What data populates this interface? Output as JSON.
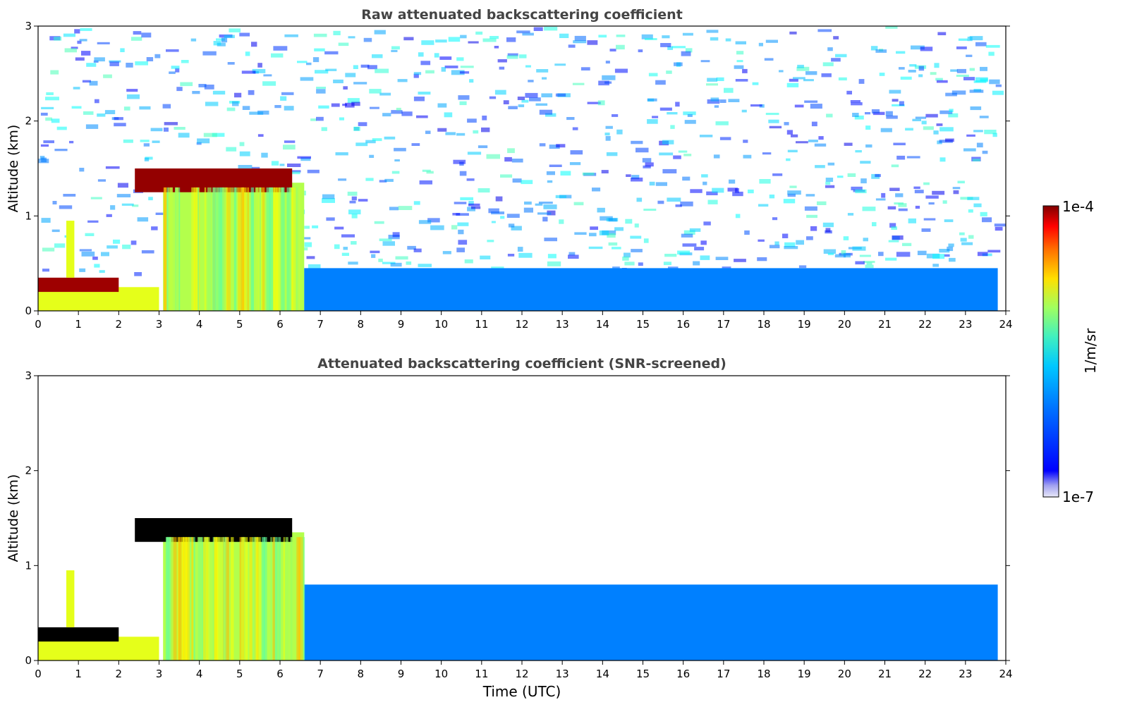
{
  "chart_data": [
    {
      "type": "heatmap",
      "title": "Raw attenuated backscattering coefficient",
      "xlabel": "",
      "ylabel": "Altitude (km)",
      "xlim": [
        0,
        24
      ],
      "ylim": [
        0,
        3
      ],
      "x_ticks": [
        "0",
        "1",
        "2",
        "3",
        "4",
        "5",
        "6",
        "7",
        "8",
        "9",
        "10",
        "11",
        "12",
        "13",
        "14",
        "15",
        "16",
        "17",
        "18",
        "19",
        "20",
        "21",
        "22",
        "23",
        "24"
      ],
      "y_ticks": [
        "0",
        "1",
        "2",
        "3"
      ],
      "data_end_time": 23.8,
      "log_scale_color": true,
      "features": [
        {
          "t0": 0.0,
          "t1": 3.0,
          "z0": 0.0,
          "z1": 0.25,
          "level": 0.6
        },
        {
          "t0": 0.0,
          "t1": 2.0,
          "z0": 0.2,
          "z1": 0.35,
          "level": 0.97
        },
        {
          "t0": 0.7,
          "t1": 0.9,
          "z0": 0.35,
          "z1": 0.95,
          "level": 0.6
        },
        {
          "t0": 3.1,
          "t1": 6.6,
          "z0": 0.0,
          "z1": 1.35,
          "level": 0.55
        },
        {
          "t0": 2.4,
          "t1": 6.3,
          "z0": 1.25,
          "z1": 1.5,
          "level": 0.98
        },
        {
          "t0": 6.6,
          "t1": 23.8,
          "z0": 0.0,
          "z1": 0.45,
          "level": 0.25
        }
      ]
    },
    {
      "type": "heatmap",
      "title": "Attenuated backscattering coefficient (SNR-screened)",
      "xlabel": "Time (UTC)",
      "ylabel": "Altitude (km)",
      "xlim": [
        0,
        24
      ],
      "ylim": [
        0,
        3
      ],
      "x_ticks": [
        "0",
        "1",
        "2",
        "3",
        "4",
        "5",
        "6",
        "7",
        "8",
        "9",
        "10",
        "11",
        "12",
        "13",
        "14",
        "15",
        "16",
        "17",
        "18",
        "19",
        "20",
        "21",
        "22",
        "23",
        "24"
      ],
      "y_ticks": [
        "0",
        "1",
        "2",
        "3"
      ],
      "data_end_time": 23.8,
      "log_scale_color": true,
      "features": [
        {
          "t0": 0.0,
          "t1": 3.0,
          "z0": 0.0,
          "z1": 0.25,
          "level": 0.6
        },
        {
          "t0": 0.0,
          "t1": 2.0,
          "z0": 0.2,
          "z1": 0.35,
          "level": 0.0
        },
        {
          "t0": 0.7,
          "t1": 0.9,
          "z0": 0.35,
          "z1": 0.95,
          "level": 0.6
        },
        {
          "t0": 3.1,
          "t1": 6.6,
          "z0": 0.0,
          "z1": 1.35,
          "level": 0.55
        },
        {
          "t0": 2.4,
          "t1": 6.3,
          "z0": 1.25,
          "z1": 1.5,
          "level": 0.0
        },
        {
          "t0": 6.6,
          "t1": 23.8,
          "z0": 0.0,
          "z1": 0.8,
          "level": 0.25
        }
      ]
    }
  ],
  "colorbar": {
    "label": "1/m/sr",
    "max_label": "1e-4",
    "min_label": "1e-7",
    "min_value": 1e-07,
    "max_value": 0.0001,
    "colormap": "jet"
  },
  "colors": {
    "background": "#ffffff",
    "title": "#444444",
    "screened_cloud": "#000000"
  }
}
